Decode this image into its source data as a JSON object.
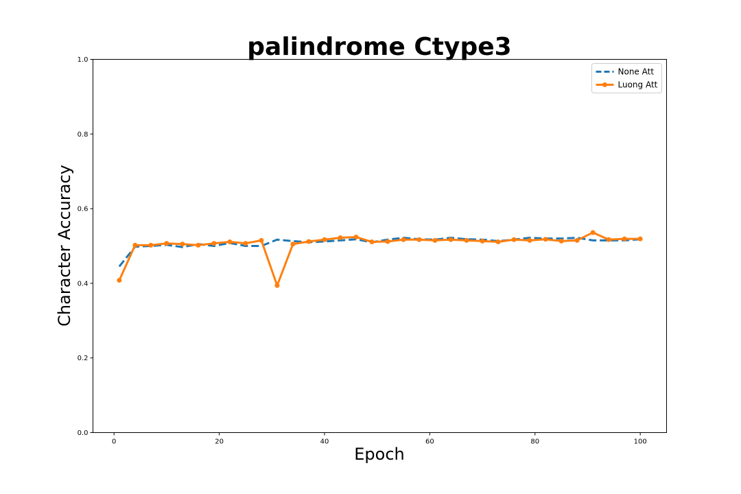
{
  "chart_data": {
    "type": "line",
    "title": "palindrome Ctype3",
    "xlabel": "Epoch",
    "ylabel": "Character Accuracy",
    "xlim": [
      -4,
      105
    ],
    "ylim": [
      0.0,
      1.0
    ],
    "xticks": [
      0,
      20,
      40,
      60,
      80,
      100
    ],
    "yticks": [
      0.0,
      0.2,
      0.4,
      0.6,
      0.8,
      1.0
    ],
    "xtick_labels": [
      "0",
      "20",
      "40",
      "60",
      "80",
      "100"
    ],
    "ytick_labels": [
      "0.0",
      "0.2",
      "0.4",
      "0.6",
      "0.8",
      "1.0"
    ],
    "grid": false,
    "legend_position": "top-right",
    "x": [
      1,
      4,
      7,
      10,
      13,
      16,
      19,
      22,
      25,
      28,
      31,
      34,
      37,
      40,
      43,
      46,
      49,
      52,
      55,
      58,
      61,
      64,
      67,
      70,
      73,
      76,
      79,
      82,
      85,
      88,
      91,
      94,
      97,
      100
    ],
    "series": [
      {
        "name": "None Att",
        "color": "#1f77b4",
        "style": "dashed",
        "markers": false,
        "values": [
          0.445,
          0.498,
          0.5,
          0.503,
          0.497,
          0.505,
          0.5,
          0.508,
          0.5,
          0.5,
          0.517,
          0.513,
          0.51,
          0.512,
          0.515,
          0.518,
          0.51,
          0.517,
          0.522,
          0.518,
          0.517,
          0.522,
          0.518,
          0.517,
          0.513,
          0.517,
          0.522,
          0.52,
          0.52,
          0.522,
          0.515,
          0.515,
          0.515,
          0.518
        ]
      },
      {
        "name": "Luong Att",
        "color": "#ff7f0e",
        "style": "solid",
        "markers": true,
        "values": [
          0.408,
          0.502,
          0.502,
          0.507,
          0.505,
          0.502,
          0.507,
          0.511,
          0.507,
          0.515,
          0.394,
          0.505,
          0.512,
          0.517,
          0.522,
          0.524,
          0.511,
          0.512,
          0.517,
          0.517,
          0.515,
          0.517,
          0.515,
          0.513,
          0.511,
          0.517,
          0.515,
          0.518,
          0.513,
          0.515,
          0.536,
          0.517,
          0.519,
          0.519
        ]
      }
    ]
  }
}
